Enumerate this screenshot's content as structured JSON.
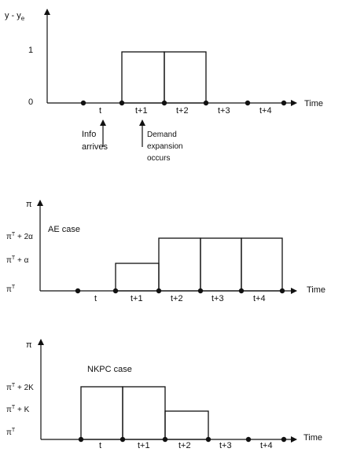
{
  "panel1": {
    "y_axis_label": "y - y",
    "y_axis_label_sub": "e",
    "x_axis_label": "Time",
    "y_ticks": [
      "1",
      "0"
    ],
    "periods": [
      "t",
      "t+1",
      "t+2",
      "t+3",
      "t+4"
    ],
    "annotation_info": [
      "Info",
      "arrives"
    ],
    "annotation_demand": [
      "Demand",
      "expansion",
      "occurs"
    ]
  },
  "panel2": {
    "y_axis_label": "π",
    "case_label": "AE case",
    "x_axis_label": "Time",
    "y_ticks": [
      "π",
      "π",
      "π"
    ],
    "y_ticks_sup": [
      "T",
      "T",
      "T"
    ],
    "y_ticks_suffix": [
      " + 2α",
      " + α",
      ""
    ],
    "periods": [
      "t",
      "t+1",
      "t+2",
      "t+3",
      "t+4"
    ]
  },
  "panel3": {
    "y_axis_label": "π",
    "case_label": "NKPC case",
    "x_axis_label": "Time",
    "y_ticks": [
      "π",
      "π",
      "π"
    ],
    "y_ticks_sup": [
      "T",
      "T",
      "T"
    ],
    "y_ticks_suffix": [
      " + 2K",
      " + K",
      ""
    ],
    "periods": [
      "t",
      "t+1",
      "t+2",
      "t+3",
      "t+4"
    ]
  }
}
